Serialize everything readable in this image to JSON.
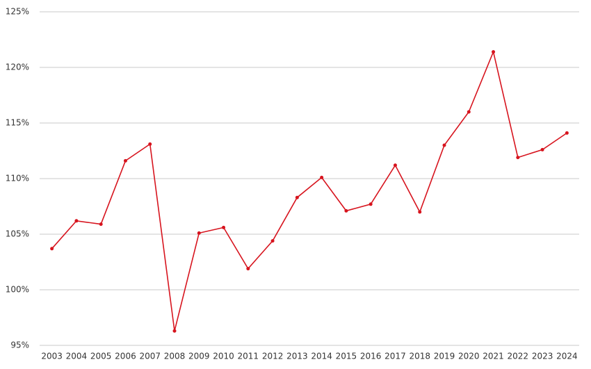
{
  "chart_data": {
    "type": "line",
    "categories": [
      "2003",
      "2004",
      "2005",
      "2006",
      "2007",
      "2008",
      "2009",
      "2010",
      "2011",
      "2012",
      "2013",
      "2014",
      "2015",
      "2016",
      "2017",
      "2018",
      "2019",
      "2020",
      "2021",
      "2022",
      "2023",
      "2024"
    ],
    "series": [
      {
        "color": "#d7141e",
        "values": [
          103.7,
          106.2,
          105.9,
          111.6,
          113.1,
          96.3,
          105.1,
          105.6,
          101.9,
          104.4,
          108.3,
          110.1,
          107.1,
          107.7,
          111.2,
          107.0,
          113.0,
          116.0,
          121.4,
          111.9,
          112.6,
          114.1
        ]
      }
    ],
    "ylim": [
      95,
      125
    ],
    "yticks": [
      {
        "value": 95,
        "label": "95%"
      },
      {
        "value": 100,
        "label": "100%"
      },
      {
        "value": 105,
        "label": "105%"
      },
      {
        "value": 110,
        "label": "110%"
      },
      {
        "value": 115,
        "label": "115%"
      },
      {
        "value": 120,
        "label": "120%"
      },
      {
        "value": 125,
        "label": "125%"
      }
    ],
    "grid": true
  }
}
